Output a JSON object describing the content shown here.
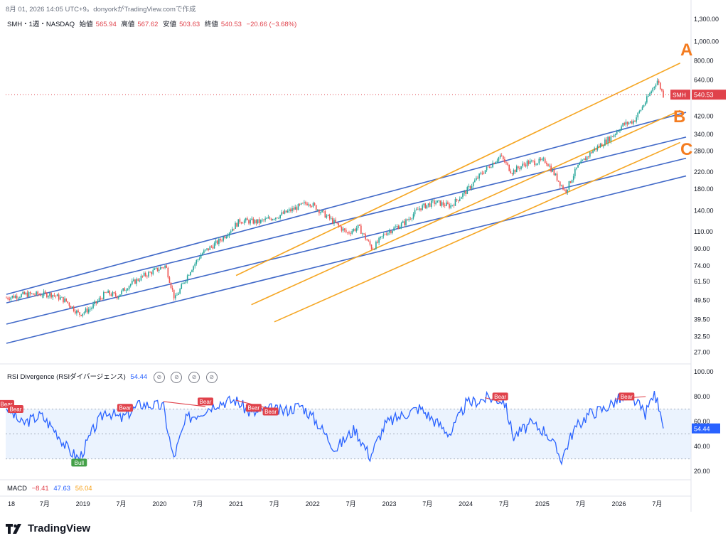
{
  "top_caption": "8月 01, 2026 14:05 UTC+9。donyorkがTradingView.comで作成",
  "main_legend": {
    "symbol": "SMH・1週・NASDAQ",
    "open_label": "始値",
    "open": "565.94",
    "high_label": "高値",
    "high": "567.62",
    "low_label": "安値",
    "low": "503.63",
    "close_label": "終値",
    "close": "540.53",
    "change": "−20.66 (−3.68%)"
  },
  "price_tag": {
    "symbol": "SMH",
    "value": "540.53"
  },
  "rsi_legend": {
    "title": "RSI Divergence (RSIダイバージェンス)",
    "value": "54.44",
    "icons": [
      "⊘",
      "⊘",
      "⊘",
      "⊘"
    ]
  },
  "macd_legend": {
    "title": "MACD",
    "v1": "−8.41",
    "v2": "47.63",
    "v3": "56.04"
  },
  "logo_text": "TradingView",
  "colors": {
    "up": "#26a69a",
    "down": "#ef5350",
    "blue_channel": "#4169c8",
    "orange_channel": "#f5a623",
    "rsi_line": "#2962ff",
    "rsi_band": "#dbeafe",
    "annotation": "#f47c20",
    "bear": "#e0424b",
    "bull": "#43a047"
  },
  "chart_data": [
    {
      "type": "candlestick",
      "title": "SMH・1週・NASDAQ",
      "yscale": "log",
      "ylim": [
        24,
        1400
      ],
      "y_ticks": [
        "1,300.00",
        "1,000.00",
        "800.00",
        "640.00",
        "420.00",
        "340.00",
        "280.00",
        "220.00",
        "180.00",
        "140.00",
        "110.00",
        "90.00",
        "74.00",
        "61.50",
        "49.50",
        "39.50",
        "32.50",
        "27.00"
      ],
      "x_ticks": [
        "18",
        "7月",
        "2019",
        "7月",
        "2020",
        "7月",
        "2021",
        "7月",
        "2022",
        "7月",
        "2023",
        "7月",
        "2024",
        "7月",
        "2025",
        "7月",
        "2026",
        "7月"
      ],
      "series": [
        {
          "x": 2018.0,
          "y": 51
        },
        {
          "x": 2018.25,
          "y": 53
        },
        {
          "x": 2018.6,
          "y": 53
        },
        {
          "x": 2018.78,
          "y": 49
        },
        {
          "x": 2018.95,
          "y": 42
        },
        {
          "x": 2019.1,
          "y": 45
        },
        {
          "x": 2019.3,
          "y": 54
        },
        {
          "x": 2019.45,
          "y": 52
        },
        {
          "x": 2019.6,
          "y": 59
        },
        {
          "x": 2019.8,
          "y": 66
        },
        {
          "x": 2020.08,
          "y": 74
        },
        {
          "x": 2020.2,
          "y": 50
        },
        {
          "x": 2020.4,
          "y": 70
        },
        {
          "x": 2020.55,
          "y": 85
        },
        {
          "x": 2020.8,
          "y": 100
        },
        {
          "x": 2021.05,
          "y": 125
        },
        {
          "x": 2021.3,
          "y": 123
        },
        {
          "x": 2021.55,
          "y": 132
        },
        {
          "x": 2021.7,
          "y": 140
        },
        {
          "x": 2021.95,
          "y": 155
        },
        {
          "x": 2022.2,
          "y": 130
        },
        {
          "x": 2022.45,
          "y": 108
        },
        {
          "x": 2022.6,
          "y": 116
        },
        {
          "x": 2022.78,
          "y": 90
        },
        {
          "x": 2022.95,
          "y": 108
        },
        {
          "x": 2023.2,
          "y": 122
        },
        {
          "x": 2023.4,
          "y": 145
        },
        {
          "x": 2023.6,
          "y": 155
        },
        {
          "x": 2023.8,
          "y": 148
        },
        {
          "x": 2024.0,
          "y": 175
        },
        {
          "x": 2024.2,
          "y": 215
        },
        {
          "x": 2024.45,
          "y": 265
        },
        {
          "x": 2024.6,
          "y": 220
        },
        {
          "x": 2024.8,
          "y": 245
        },
        {
          "x": 2025.05,
          "y": 250
        },
        {
          "x": 2025.3,
          "y": 175
        },
        {
          "x": 2025.45,
          "y": 230
        },
        {
          "x": 2025.65,
          "y": 280
        },
        {
          "x": 2025.9,
          "y": 330
        },
        {
          "x": 2026.05,
          "y": 380
        },
        {
          "x": 2026.2,
          "y": 400
        },
        {
          "x": 2026.35,
          "y": 500
        },
        {
          "x": 2026.5,
          "y": 640
        },
        {
          "x": 2026.58,
          "y": 540
        }
      ],
      "annotations": [
        "A",
        "B",
        "C"
      ]
    },
    {
      "type": "line",
      "title": "RSI Divergence (RSIダイバージェンス)",
      "ylim": [
        15,
        105
      ],
      "y_ticks": [
        "100.00",
        "80.00",
        "60.00",
        "40.00",
        "20.00"
      ],
      "band": [
        30,
        70
      ],
      "series": [
        {
          "values": [
            {
              "x": 2018.0,
              "y": 72
            },
            {
              "x": 2018.2,
              "y": 58
            },
            {
              "x": 2018.45,
              "y": 65
            },
            {
              "x": 2018.65,
              "y": 52
            },
            {
              "x": 2018.8,
              "y": 38
            },
            {
              "x": 2018.95,
              "y": 30
            },
            {
              "x": 2019.15,
              "y": 55
            },
            {
              "x": 2019.3,
              "y": 69
            },
            {
              "x": 2019.5,
              "y": 62
            },
            {
              "x": 2019.75,
              "y": 74
            },
            {
              "x": 2020.05,
              "y": 72
            },
            {
              "x": 2020.18,
              "y": 30
            },
            {
              "x": 2020.35,
              "y": 62
            },
            {
              "x": 2020.55,
              "y": 68
            },
            {
              "x": 2020.75,
              "y": 75
            },
            {
              "x": 2021.0,
              "y": 77
            },
            {
              "x": 2021.2,
              "y": 66
            },
            {
              "x": 2021.45,
              "y": 70
            },
            {
              "x": 2021.6,
              "y": 68
            },
            {
              "x": 2021.85,
              "y": 73
            },
            {
              "x": 2022.05,
              "y": 60
            },
            {
              "x": 2022.3,
              "y": 38
            },
            {
              "x": 2022.55,
              "y": 54
            },
            {
              "x": 2022.75,
              "y": 32
            },
            {
              "x": 2022.95,
              "y": 58
            },
            {
              "x": 2023.2,
              "y": 66
            },
            {
              "x": 2023.4,
              "y": 71
            },
            {
              "x": 2023.6,
              "y": 60
            },
            {
              "x": 2023.8,
              "y": 50
            },
            {
              "x": 2024.0,
              "y": 74
            },
            {
              "x": 2024.3,
              "y": 79
            },
            {
              "x": 2024.5,
              "y": 77
            },
            {
              "x": 2024.62,
              "y": 48
            },
            {
              "x": 2024.85,
              "y": 58
            },
            {
              "x": 2025.05,
              "y": 52
            },
            {
              "x": 2025.25,
              "y": 30
            },
            {
              "x": 2025.4,
              "y": 52
            },
            {
              "x": 2025.6,
              "y": 66
            },
            {
              "x": 2025.8,
              "y": 70
            },
            {
              "x": 2026.0,
              "y": 78
            },
            {
              "x": 2026.2,
              "y": 77
            },
            {
              "x": 2026.35,
              "y": 66
            },
            {
              "x": 2026.45,
              "y": 82
            },
            {
              "x": 2026.55,
              "y": 70
            },
            {
              "x": 2026.58,
              "y": 54.44
            }
          ]
        }
      ],
      "labels": [
        {
          "text": "Bear",
          "x": 2018.0,
          "y": 74
        },
        {
          "text": "Bear",
          "x": 2018.12,
          "y": 70
        },
        {
          "text": "Bull",
          "x": 2018.95,
          "y": 27
        },
        {
          "text": "Bear",
          "x": 2019.55,
          "y": 71
        },
        {
          "text": "Bear",
          "x": 2020.6,
          "y": 76
        },
        {
          "text": "Bear",
          "x": 2021.23,
          "y": 71
        },
        {
          "text": "Bear",
          "x": 2021.45,
          "y": 68
        },
        {
          "text": "Bear",
          "x": 2024.45,
          "y": 80
        },
        {
          "text": "Bear",
          "x": 2026.1,
          "y": 80
        }
      ]
    }
  ]
}
